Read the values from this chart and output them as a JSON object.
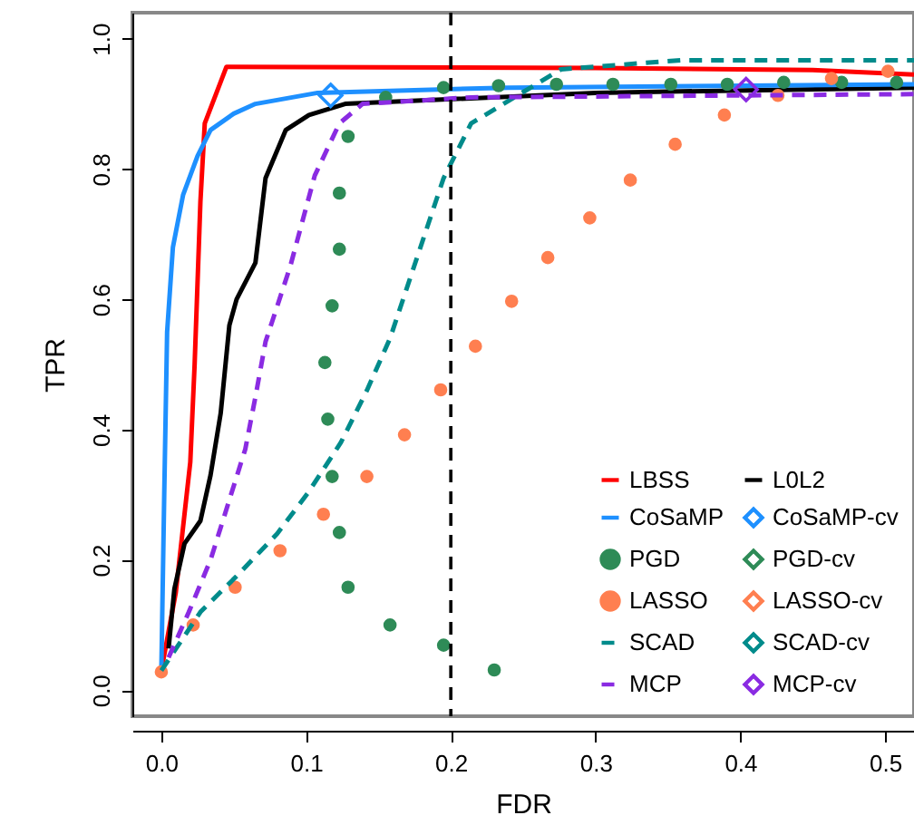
{
  "chart_data": {
    "type": "line",
    "xlabel": "FDR",
    "ylabel": "TPR",
    "xlim": [
      -0.02,
      0.52
    ],
    "ylim": [
      -0.04,
      1.04
    ],
    "xticks": [
      {
        "value": 0,
        "label": "0.0"
      },
      0.1,
      0.2,
      0.3,
      0.4,
      0.5
    ],
    "yticks": [
      {
        "value": 0,
        "label": "0.0"
      },
      0.2,
      0.4,
      0.6,
      0.8,
      {
        "value": 1,
        "label": "1.0"
      }
    ],
    "legend": "bottom right",
    "ref_lines": [
      {
        "axis": "x",
        "value": 0.2,
        "color": "#000000",
        "line_style": "dashed"
      }
    ],
    "series": [
      {
        "name": "LBSS",
        "type": "line",
        "color": "#ff0000",
        "line_style": "solid",
        "x": [
          0,
          0.01,
          0.02,
          0.023,
          0.027,
          0.03,
          0.045,
          0.3,
          0.45,
          0.52
        ],
        "values": [
          0.03,
          0.15,
          0.35,
          0.5,
          0.75,
          0.87,
          0.957,
          0.955,
          0.952,
          0.945
        ]
      },
      {
        "name": "L0L2",
        "type": "line",
        "color": "#000000",
        "line_style": "solid",
        "x": [
          0.005,
          0.009,
          0.016,
          0.027,
          0.034,
          0.041,
          0.047,
          0.052,
          0.065,
          0.072,
          0.086,
          0.102,
          0.127,
          0.3,
          0.52
        ],
        "values": [
          0.064,
          0.155,
          0.225,
          0.26,
          0.33,
          0.425,
          0.56,
          0.6,
          0.656,
          0.786,
          0.86,
          0.883,
          0.9,
          0.917,
          0.925
        ]
      },
      {
        "name": "CoSaMP",
        "type": "line",
        "color": "#1e90ff",
        "line_style": "solid",
        "x": [
          0,
          0.002,
          0.004,
          0.008,
          0.015,
          0.025,
          0.034,
          0.05,
          0.065,
          0.108,
          0.24,
          0.52
        ],
        "values": [
          0.03,
          0.3,
          0.55,
          0.68,
          0.76,
          0.82,
          0.86,
          0.885,
          0.9,
          0.917,
          0.925,
          0.93
        ]
      },
      {
        "name": "CoSaMP-cv",
        "type": "scatter",
        "marker": "diamond",
        "color": "#1e90ff",
        "x": [
          0.117
        ],
        "values": [
          0.913
        ]
      },
      {
        "name": "PGD",
        "type": "scatter",
        "marker": "circle",
        "color": "#2e8b57",
        "x": [
          0.23,
          0.195,
          0.158,
          0.129,
          0.123,
          0.118,
          0.115,
          0.113,
          0.118,
          0.123,
          0.123,
          0.129,
          0.155,
          0.195,
          0.233,
          0.273,
          0.312,
          0.352,
          0.391,
          0.43,
          0.47,
          0.508
        ],
        "values": [
          0.031,
          0.069,
          0.1,
          0.158,
          0.242,
          0.328,
          0.416,
          0.503,
          0.59,
          0.677,
          0.763,
          0.85,
          0.91,
          0.925,
          0.928,
          0.93,
          0.93,
          0.93,
          0.93,
          0.933,
          0.933,
          0.933
        ]
      },
      {
        "name": "PGD-cv",
        "type": "scatter",
        "marker": "diamond",
        "color": "#2e8b57"
      },
      {
        "name": "LASSO",
        "type": "scatter",
        "marker": "circle",
        "color": "#ff7f50",
        "x": [
          0,
          0.022,
          0.051,
          0.082,
          0.112,
          0.142,
          0.168,
          0.193,
          0.217,
          0.242,
          0.267,
          0.296,
          0.324,
          0.355,
          0.389,
          0.426,
          0.463,
          0.502
        ],
        "values": [
          0.028,
          0.1,
          0.158,
          0.214,
          0.27,
          0.328,
          0.392,
          0.461,
          0.528,
          0.597,
          0.664,
          0.725,
          0.783,
          0.838,
          0.883,
          0.913,
          0.939,
          0.95
        ]
      },
      {
        "name": "LASSO-cv",
        "type": "scatter",
        "marker": "diamond",
        "color": "#ff7f50"
      },
      {
        "name": "SCAD",
        "type": "line",
        "color": "#008b8b",
        "line_style": "dashed",
        "x": [
          0,
          0.027,
          0.052,
          0.08,
          0.102,
          0.124,
          0.142,
          0.158,
          0.195,
          0.214,
          0.276,
          0.317,
          0.359,
          0.52
        ],
        "values": [
          0.03,
          0.12,
          0.175,
          0.24,
          0.305,
          0.38,
          0.46,
          0.54,
          0.786,
          0.87,
          0.953,
          0.96,
          0.967,
          0.967
        ]
      },
      {
        "name": "SCAD-cv",
        "type": "scatter",
        "marker": "diamond",
        "color": "#008b8b"
      },
      {
        "name": "MCP",
        "type": "line",
        "color": "#8a2be2",
        "line_style": "dashed",
        "x": [
          0.005,
          0.019,
          0.034,
          0.046,
          0.058,
          0.065,
          0.072,
          0.089,
          0.106,
          0.123,
          0.139,
          0.214,
          0.52
        ],
        "values": [
          0.05,
          0.12,
          0.2,
          0.285,
          0.37,
          0.45,
          0.535,
          0.65,
          0.79,
          0.87,
          0.9,
          0.91,
          0.915
        ]
      },
      {
        "name": "MCP-cv",
        "type": "scatter",
        "marker": "diamond",
        "color": "#8a2be2",
        "x": [
          0.404
        ],
        "values": [
          0.922
        ]
      }
    ]
  }
}
